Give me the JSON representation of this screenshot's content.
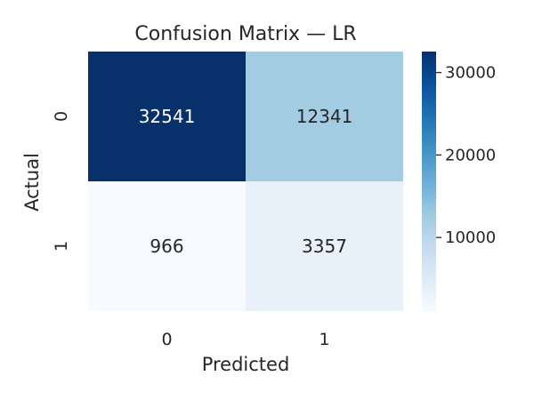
{
  "chart_data": {
    "type": "heatmap",
    "title": "Confusion Matrix — LR",
    "xlabel": "Predicted",
    "ylabel": "Actual",
    "x_categories": [
      "0",
      "1"
    ],
    "y_categories": [
      "0",
      "1"
    ],
    "values": [
      [
        32541,
        12341
      ],
      [
        966,
        3357
      ]
    ],
    "colormap": "Blues",
    "color_range": [
      966,
      32541
    ],
    "colorbar": {
      "ticks": [
        10000,
        20000,
        30000
      ],
      "tick_labels": [
        "10000",
        "20000",
        "30000"
      ]
    },
    "grid": false
  }
}
